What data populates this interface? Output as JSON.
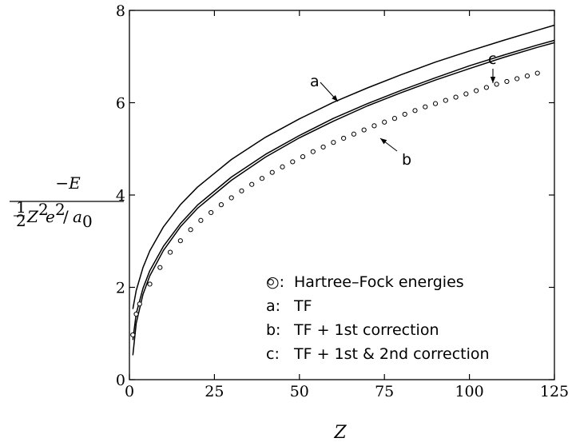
{
  "chart_data": {
    "type": "line",
    "xlabel": "Z",
    "ylabel_numerator": "−E",
    "ylabel_denominator": {
      "frac_num": "1",
      "frac_den": "2",
      "Z": "Z",
      "Z_exp": "2",
      "e": "e",
      "e_exp": "2",
      "slash": "/",
      "a": "a",
      "a_sub": "0"
    },
    "xlim": [
      0,
      125
    ],
    "ylim": [
      0,
      8
    ],
    "x_ticks": [
      0,
      25,
      50,
      75,
      100,
      125
    ],
    "y_ticks": [
      0,
      2,
      4,
      6,
      8
    ],
    "grid": false,
    "legend_position": "lower-right",
    "legend": [
      {
        "key": "○:",
        "label": "Hartree–Fock energies"
      },
      {
        "key": "a:",
        "label": "TF"
      },
      {
        "key": "b:",
        "label": "TF + 1st correction"
      },
      {
        "key": "c:",
        "label": "TF + 1st & 2nd correction"
      }
    ],
    "annotations": [
      {
        "label": "a",
        "series": "a"
      },
      {
        "label": "b",
        "series": "b"
      },
      {
        "label": "c",
        "series": "c"
      }
    ],
    "series": [
      {
        "name": "a",
        "x": [
          1,
          2,
          4,
          6,
          10,
          15,
          20,
          30,
          40,
          50,
          60,
          70,
          80,
          90,
          100,
          110,
          120,
          125
        ],
        "y": [
          1.53,
          1.93,
          2.43,
          2.79,
          3.31,
          3.79,
          4.17,
          4.77,
          5.25,
          5.65,
          6.01,
          6.32,
          6.61,
          6.88,
          7.12,
          7.35,
          7.57,
          7.68
        ]
      },
      {
        "name": "b",
        "x": [
          1,
          2,
          4,
          6,
          10,
          15,
          20,
          30,
          40,
          50,
          60,
          70,
          80,
          90,
          100,
          110,
          120,
          125
        ],
        "y": [
          0.53,
          1.22,
          1.85,
          2.25,
          2.8,
          3.31,
          3.71,
          4.32,
          4.82,
          5.24,
          5.6,
          5.93,
          6.22,
          6.49,
          6.74,
          6.98,
          7.2,
          7.3
        ]
      },
      {
        "name": "c",
        "x": [
          1,
          2,
          4,
          6,
          10,
          15,
          20,
          30,
          40,
          50,
          60,
          70,
          80,
          90,
          100,
          110,
          120,
          125
        ],
        "y": [
          0.86,
          1.43,
          1.98,
          2.36,
          2.89,
          3.38,
          3.78,
          4.39,
          4.88,
          5.29,
          5.66,
          5.98,
          6.27,
          6.54,
          6.8,
          7.03,
          7.25,
          7.35
        ]
      },
      {
        "name": "Hartree–Fock energies",
        "x": [
          1,
          2,
          3,
          6,
          9,
          12,
          15,
          18,
          21,
          24,
          27,
          30,
          33,
          36,
          39,
          42,
          45,
          48,
          51,
          54,
          57,
          60,
          63,
          66,
          69,
          72,
          75,
          78,
          81,
          84,
          87,
          90,
          93,
          96,
          99,
          102,
          105,
          108,
          111,
          114,
          117,
          120
        ],
        "y": [
          0.97,
          1.42,
          1.64,
          2.07,
          2.43,
          2.76,
          3.01,
          3.25,
          3.45,
          3.62,
          3.79,
          3.94,
          4.09,
          4.23,
          4.36,
          4.49,
          4.61,
          4.72,
          4.83,
          4.94,
          5.04,
          5.14,
          5.23,
          5.32,
          5.41,
          5.5,
          5.58,
          5.66,
          5.75,
          5.83,
          5.91,
          5.98,
          6.05,
          6.12,
          6.19,
          6.26,
          6.33,
          6.4,
          6.46,
          6.52,
          6.58,
          6.64
        ]
      }
    ]
  }
}
